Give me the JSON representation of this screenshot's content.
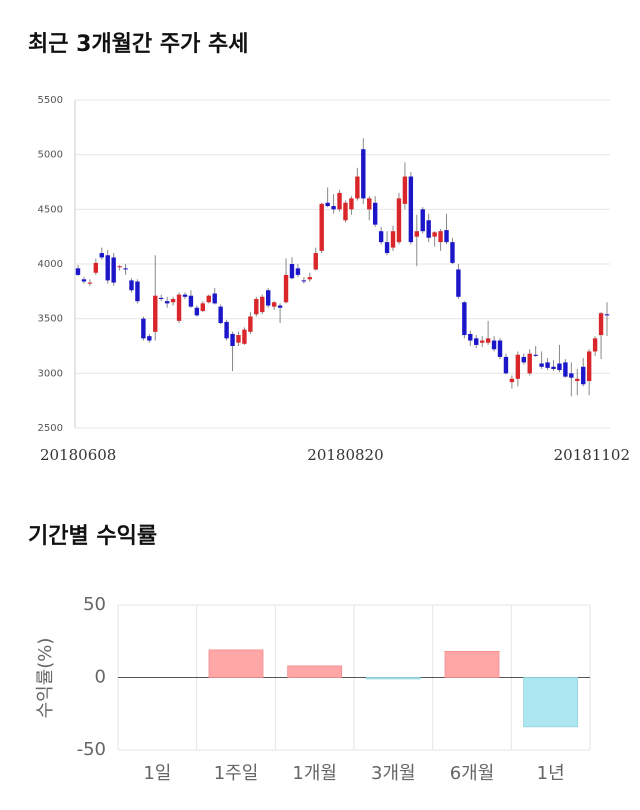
{
  "chart_data": [
    {
      "type": "candlestick",
      "title": "최근 3개월간 주가 추세",
      "categories": [
        "20180608",
        null,
        null,
        null,
        null,
        null,
        null,
        null,
        null,
        null,
        null,
        null,
        null,
        null,
        null,
        null,
        null,
        null,
        null,
        null,
        null,
        null,
        null,
        null,
        null,
        null,
        null,
        null,
        null,
        null,
        null,
        null,
        null,
        null,
        null,
        null,
        null,
        null,
        null,
        null,
        null,
        null,
        null,
        null,
        null,
        "20180820",
        null,
        null,
        null,
        null,
        null,
        null,
        null,
        null,
        null,
        null,
        null,
        null,
        null,
        null,
        null,
        null,
        null,
        null,
        null,
        null,
        null,
        null,
        null,
        null,
        null,
        null,
        null,
        null,
        null,
        null,
        null,
        null,
        null,
        null,
        null,
        null,
        null,
        null,
        null,
        null,
        null,
        null,
        null,
        "20181102"
      ],
      "open": [
        3960,
        3860,
        3820,
        3920,
        4100,
        4080,
        4060,
        3970,
        3960,
        3850,
        3840,
        3500,
        3340,
        3380,
        3690,
        3660,
        3650,
        3480,
        3720,
        3710,
        3600,
        3570,
        3650,
        3730,
        3610,
        3470,
        3360,
        3280,
        3270,
        3380,
        3540,
        3560,
        3760,
        3610,
        3620,
        3650,
        4000,
        3960,
        3850,
        3860,
        3950,
        4120,
        4560,
        4530,
        4500,
        4400,
        4500,
        4600,
        5050,
        4500,
        4560,
        4300,
        4200,
        4150,
        4200,
        4550,
        4800,
        4250,
        4500,
        4400,
        4250,
        4200,
        4310,
        4200,
        3950,
        3650,
        3360,
        3320,
        3280,
        3280,
        3300,
        3300,
        3150,
        2920,
        2950,
        3150,
        3000,
        3170,
        3090,
        3100,
        3060,
        3090,
        3100,
        3000,
        2930,
        3060,
        2930,
        3200,
        3350,
        3540
      ],
      "high": [
        3990,
        3880,
        3860,
        4050,
        4150,
        4130,
        4100,
        3990,
        4000,
        3870,
        3860,
        3520,
        3360,
        4080,
        3720,
        3700,
        3700,
        3740,
        3740,
        3760,
        3620,
        3660,
        3720,
        3780,
        3630,
        3490,
        3380,
        3380,
        3420,
        3560,
        3700,
        3720,
        3780,
        3660,
        3640,
        4050,
        4060,
        4000,
        3880,
        3920,
        4150,
        4560,
        4700,
        4640,
        4680,
        4580,
        4620,
        4880,
        5150,
        4620,
        4620,
        4340,
        4300,
        4350,
        4650,
        4930,
        4840,
        4450,
        4520,
        4460,
        4300,
        4320,
        4460,
        4240,
        4000,
        3660,
        3390,
        3350,
        3340,
        3480,
        3340,
        3320,
        3180,
        2980,
        3200,
        3180,
        3220,
        3250,
        3200,
        3140,
        3120,
        3260,
        3130,
        3100,
        3040,
        3140,
        3220,
        3340,
        3560,
        3650
      ],
      "low": [
        3890,
        3820,
        3800,
        3900,
        4040,
        3820,
        3800,
        3940,
        3900,
        3740,
        3640,
        3300,
        3280,
        3300,
        3660,
        3600,
        3620,
        3460,
        3680,
        3600,
        3520,
        3560,
        3640,
        3630,
        3450,
        3300,
        3020,
        3250,
        3260,
        3360,
        3520,
        3540,
        3600,
        3580,
        3460,
        3640,
        3860,
        3880,
        3820,
        3840,
        3940,
        4100,
        4520,
        4460,
        4480,
        4380,
        4450,
        4580,
        4550,
        4400,
        4340,
        4180,
        4080,
        4120,
        4180,
        4500,
        4180,
        3980,
        4280,
        4200,
        4160,
        4120,
        4180,
        4000,
        3680,
        3320,
        3250,
        3230,
        3240,
        3260,
        3200,
        3130,
        2990,
        2860,
        2880,
        3080,
        2980,
        3150,
        3040,
        3030,
        3020,
        3010,
        2960,
        2790,
        2800,
        2880,
        2800,
        3160,
        3130,
        3340
      ],
      "close": [
        3900,
        3840,
        3830,
        4010,
        4060,
        3850,
        3830,
        3980,
        3950,
        3760,
        3660,
        3320,
        3300,
        3710,
        3680,
        3640,
        3680,
        3720,
        3700,
        3610,
        3530,
        3640,
        3710,
        3640,
        3460,
        3320,
        3250,
        3350,
        3400,
        3520,
        3680,
        3700,
        3620,
        3650,
        3600,
        3900,
        3870,
        3900,
        3840,
        3880,
        4100,
        4550,
        4530,
        4500,
        4650,
        4560,
        4600,
        4800,
        4600,
        4600,
        4360,
        4200,
        4100,
        4300,
        4600,
        4800,
        4200,
        4300,
        4300,
        4240,
        4290,
        4300,
        4200,
        4010,
        3700,
        3350,
        3300,
        3260,
        3300,
        3320,
        3220,
        3150,
        3000,
        2950,
        3170,
        3100,
        3180,
        3160,
        3060,
        3050,
        3040,
        3030,
        2970,
        2960,
        2950,
        2900,
        3200,
        3320,
        3550,
        3530
      ],
      "up_color": "#d8262b",
      "down_color": "#1c16c9",
      "ylim": [
        2500,
        5500
      ],
      "yticks": [
        2500,
        3000,
        3500,
        4000,
        4500,
        5000,
        5500
      ],
      "grid": true
    },
    {
      "type": "bar",
      "title": "기간별 수익률",
      "ylabel": "수익률(%)",
      "categories": [
        "1일",
        "1주일",
        "1개월",
        "3개월",
        "6개월",
        "1년"
      ],
      "values": [
        0,
        19,
        8,
        -1,
        18,
        -34
      ],
      "positive_color": "#ffa6a6",
      "negative_color": "#ade8f2",
      "ylim": [
        -50,
        50
      ],
      "yticks": [
        -50,
        0,
        50
      ],
      "grid": true
    }
  ]
}
